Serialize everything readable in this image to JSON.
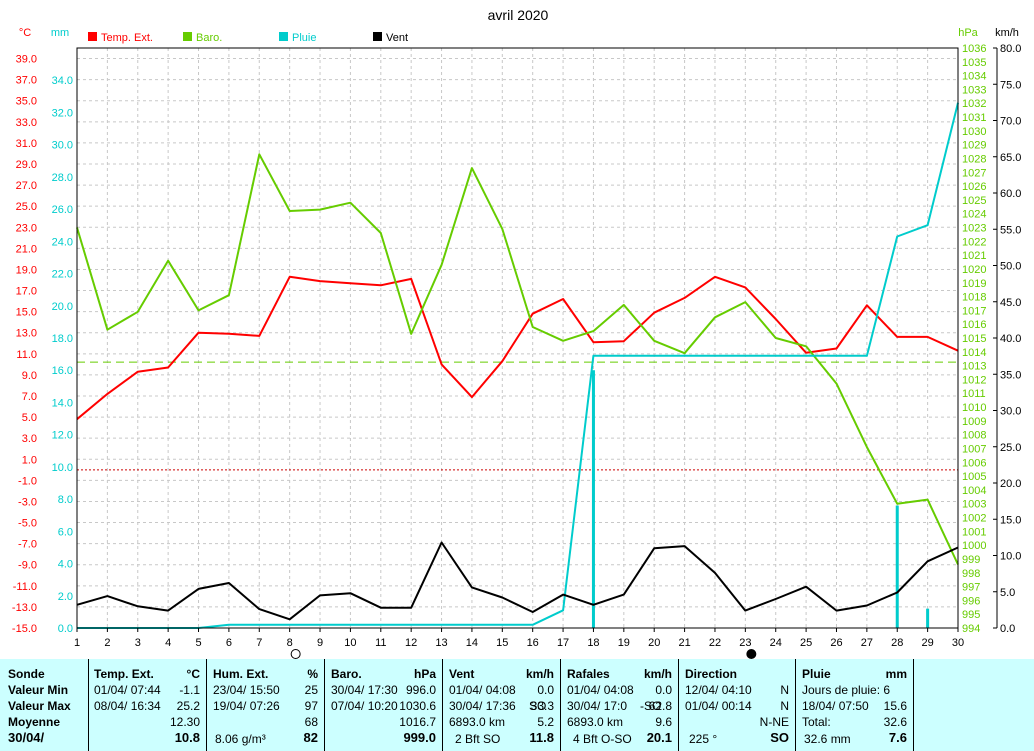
{
  "chart_data": {
    "type": "line",
    "title": "avril 2020",
    "x": [
      1,
      2,
      3,
      4,
      5,
      6,
      7,
      8,
      9,
      10,
      11,
      12,
      13,
      14,
      15,
      16,
      17,
      18,
      19,
      20,
      21,
      22,
      23,
      24,
      25,
      26,
      27,
      28,
      29,
      30
    ],
    "axes": {
      "temp": {
        "unit": "°C",
        "range": [
          -15,
          40
        ],
        "ticks": [
          "39.0",
          "37.0",
          "35.0",
          "33.0",
          "31.0",
          "29.0",
          "27.0",
          "25.0",
          "23.0",
          "21.0",
          "19.0",
          "17.0",
          "15.0",
          "13.0",
          "11.0",
          "9.0",
          "7.0",
          "5.0",
          "3.0",
          "1.0",
          "-1.0",
          "-3.0",
          "-5.0",
          "-7.0",
          "-9.0",
          "-11.0",
          "-13.0",
          "-15.0"
        ],
        "color": "#ff0000"
      },
      "mm": {
        "unit": "mm",
        "range": [
          0,
          36
        ],
        "ticks": [
          "34.0",
          "32.0",
          "30.0",
          "28.0",
          "26.0",
          "24.0",
          "22.0",
          "20.0",
          "18.0",
          "16.0",
          "14.0",
          "12.0",
          "10.0",
          "8.0",
          "6.0",
          "4.0",
          "2.0",
          "0.0"
        ],
        "color": "#00cccc"
      },
      "hpa": {
        "unit": "hPa",
        "range": [
          994,
          1036
        ],
        "ticks": [
          "1036",
          "1035",
          "1034",
          "1033",
          "1032",
          "1031",
          "1030",
          "1029",
          "1028",
          "1027",
          "1026",
          "1025",
          "1024",
          "1023",
          "1022",
          "1021",
          "1020",
          "1019",
          "1018",
          "1017",
          "1016",
          "1015",
          "1014",
          "1013",
          "1012",
          "1011",
          "1010",
          "1009",
          "1008",
          "1007",
          "1006",
          "1005",
          "1004",
          "1003",
          "1002",
          "1001",
          "1000",
          "999",
          "998",
          "997",
          "996",
          "995",
          "994"
        ],
        "color": "#66cc00"
      },
      "kmh": {
        "unit": "km/h",
        "range": [
          0,
          80
        ],
        "ticks": [
          "80.0",
          "75.0",
          "70.0",
          "65.0",
          "60.0",
          "55.0",
          "50.0",
          "45.0",
          "40.0",
          "35.0",
          "30.0",
          "25.0",
          "20.0",
          "15.0",
          "10.0",
          "5.0",
          "0.0"
        ],
        "color": "#000000"
      }
    },
    "moon_phases": [
      {
        "day": 8,
        "phase": "full"
      },
      {
        "day": 23,
        "phase": "new"
      }
    ],
    "reference_lines": [
      {
        "axis": "temp",
        "value": 0,
        "color": "#cc0000"
      },
      {
        "axis": "hpa",
        "value": 1013.25,
        "color": "#66cc00"
      }
    ],
    "series": [
      {
        "name": "Temp. Ext.",
        "axis": "temp",
        "color": "#ff0000",
        "values": [
          4.8,
          7.2,
          9.3,
          9.7,
          13.0,
          12.9,
          12.7,
          18.3,
          17.9,
          17.7,
          17.5,
          18.1,
          10.0,
          6.9,
          10.3,
          14.8,
          16.2,
          12.1,
          12.2,
          14.9,
          16.3,
          18.3,
          17.3,
          14.3,
          11.1,
          11.5,
          15.6,
          12.6,
          12.6,
          11.3
        ]
      },
      {
        "name": "Baro.",
        "axis": "hpa",
        "color": "#66cc00",
        "values": [
          1023.0,
          1015.6,
          1016.9,
          1020.6,
          1017.0,
          1018.1,
          1028.3,
          1024.2,
          1024.3,
          1024.8,
          1022.6,
          1015.3,
          1020.3,
          1027.3,
          1022.9,
          1015.8,
          1014.8,
          1015.5,
          1017.4,
          1014.8,
          1013.9,
          1016.5,
          1017.6,
          1015.0,
          1014.4,
          1011.7,
          1007.1,
          1003.0,
          1003.3,
          998.6
        ]
      },
      {
        "name": "Pluie",
        "axis": "mm",
        "color": "#00cccc",
        "values": [
          0.0,
          0.0,
          0.0,
          0.0,
          0.0,
          0.2,
          0.2,
          0.2,
          0.2,
          0.2,
          0.2,
          0.2,
          0.2,
          0.2,
          0.2,
          0.2,
          1.1,
          16.9,
          16.9,
          16.9,
          16.9,
          16.9,
          16.9,
          16.9,
          16.9,
          16.9,
          16.9,
          24.3,
          25.0,
          32.6
        ],
        "daily_bars": [
          {
            "day": 18,
            "value": 16.0
          },
          {
            "day": 28,
            "value": 7.6
          },
          {
            "day": 29,
            "value": 1.2
          }
        ]
      },
      {
        "name": "Vent",
        "axis": "kmh",
        "color": "#000000",
        "values": [
          3.2,
          4.4,
          3.0,
          2.4,
          5.4,
          6.2,
          2.6,
          1.2,
          4.5,
          4.8,
          2.8,
          2.8,
          11.8,
          5.6,
          4.2,
          2.2,
          4.6,
          3.2,
          4.6,
          11.0,
          11.3,
          7.6,
          2.4,
          4.0,
          5.7,
          2.4,
          3.1,
          4.9,
          9.2,
          11.1
        ]
      }
    ]
  },
  "stats": {
    "sonde": {
      "header": "Sonde",
      "min": "Valeur Min",
      "max": "Valeur Max",
      "avg": "Moyenne",
      "date": "30/04/"
    },
    "temp": {
      "title": "Temp. Ext.",
      "unit": "°C",
      "min_date": "01/04/  07:44",
      "min_val": "-1.1",
      "max_date": "08/04/  16:34",
      "max_val": "25.2",
      "avg": "12.30",
      "current": "10.8"
    },
    "hum": {
      "title": "Hum. Ext.",
      "unit": "%",
      "min_date": "23/04/  15:50",
      "min_val": "25",
      "max_date": "19/04/  07:26",
      "max_val": "97",
      "avg": "68",
      "abs": "8.06 g/m³",
      "current": "82"
    },
    "baro": {
      "title": "Baro.",
      "unit": "hPa",
      "min_date": "30/04/  17:30",
      "min_val": "996.0",
      "max_date": "07/04/  10:20",
      "max_val": "1030.6",
      "avg": "1016.7",
      "current": "999.0"
    },
    "vent": {
      "title": "Vent",
      "unit": "km/h",
      "min_date": "01/04/  04:08",
      "min_val": "0.0",
      "max_date": "30/04/  17:36",
      "max_dir": "SO",
      "max_val": "33.3",
      "dist": "6893.0 km",
      "avg": "5.2",
      "beaufort": "2 Bft  SO",
      "current": "11.8"
    },
    "rafales": {
      "title": "Rafales",
      "unit": "km/h",
      "min_date": "01/04/  04:08",
      "min_val": "0.0",
      "max_date": "30/04/  17:0",
      "max_dir": "-SO",
      "max_val": "62.8",
      "dist": "6893.0 km",
      "avg": "9.6",
      "beaufort": "4 Bft  O-SO",
      "current": "20.1"
    },
    "direction": {
      "title": "Direction",
      "min_date": "12/04/  04:10",
      "min_val": "N",
      "max_date": "01/04/  00:14",
      "max_val": "N",
      "avg": "N-NE",
      "deg": "225 °",
      "current": "SO"
    },
    "pluie": {
      "title": "Pluie",
      "unit": "mm",
      "days_label": "Jours de pluie: 6",
      "max_date": "18/04/  07:50",
      "max_val": "15.6",
      "total_label": "Total:",
      "total_val": "32.6",
      "month": "32.6 mm",
      "current": "7.6"
    }
  }
}
